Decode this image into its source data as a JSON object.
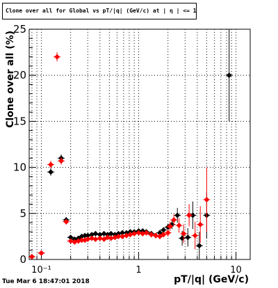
{
  "chart_data": {
    "type": "scatter",
    "title": "Clone  over all for Global vs pT/|q| (GeV/c) at | η | <= 1.0",
    "xlabel": "pT/|q| (GeV/c)",
    "ylabel": "Clone  over all (%)",
    "x_scale": "log",
    "xlim": [
      0.075,
      14
    ],
    "ylim": [
      0,
      25
    ],
    "x_major_ticks": [
      0.1,
      1,
      10
    ],
    "x_tick_labels": [
      "10⁻¹",
      "1",
      "10"
    ],
    "y_ticks": [
      0,
      5,
      10,
      15,
      20,
      25
    ],
    "y_tick_labels": [
      "0",
      "5",
      "10",
      "15",
      "20",
      "25"
    ],
    "grid": true,
    "series": [
      {
        "color": "#000000",
        "points": [
          {
            "x": 0.08,
            "y": 0.3,
            "err": 0.1
          },
          {
            "x": 0.1,
            "y": 0.7,
            "err": 0.2
          },
          {
            "x": 0.125,
            "y": 9.5,
            "err": 0.4
          },
          {
            "x": 0.16,
            "y": 11.0,
            "err": 0.4
          },
          {
            "x": 0.18,
            "y": 4.3,
            "err": 0.3
          },
          {
            "x": 0.2,
            "y": 2.4,
            "err": 0.2
          },
          {
            "x": 0.22,
            "y": 2.2,
            "err": 0.2
          },
          {
            "x": 0.24,
            "y": 2.3,
            "err": 0.2
          },
          {
            "x": 0.26,
            "y": 2.5,
            "err": 0.2
          },
          {
            "x": 0.28,
            "y": 2.6,
            "err": 0.2
          },
          {
            "x": 0.3,
            "y": 2.6,
            "err": 0.2
          },
          {
            "x": 0.33,
            "y": 2.7,
            "err": 0.2
          },
          {
            "x": 0.36,
            "y": 2.8,
            "err": 0.2
          },
          {
            "x": 0.4,
            "y": 2.7,
            "err": 0.2
          },
          {
            "x": 0.44,
            "y": 2.8,
            "err": 0.2
          },
          {
            "x": 0.48,
            "y": 2.7,
            "err": 0.2
          },
          {
            "x": 0.52,
            "y": 2.8,
            "err": 0.2
          },
          {
            "x": 0.57,
            "y": 2.7,
            "err": 0.2
          },
          {
            "x": 0.62,
            "y": 2.8,
            "err": 0.2
          },
          {
            "x": 0.68,
            "y": 2.9,
            "err": 0.2
          },
          {
            "x": 0.75,
            "y": 2.9,
            "err": 0.2
          },
          {
            "x": 0.82,
            "y": 3.0,
            "err": 0.2
          },
          {
            "x": 0.9,
            "y": 3.0,
            "err": 0.2
          },
          {
            "x": 1.0,
            "y": 3.1,
            "err": 0.2
          },
          {
            "x": 1.1,
            "y": 3.1,
            "err": 0.2
          },
          {
            "x": 1.2,
            "y": 3.0,
            "err": 0.2
          },
          {
            "x": 1.35,
            "y": 2.8,
            "err": 0.3
          },
          {
            "x": 1.5,
            "y": 2.6,
            "err": 0.3
          },
          {
            "x": 1.65,
            "y": 2.9,
            "err": 0.3
          },
          {
            "x": 1.8,
            "y": 3.2,
            "err": 0.3
          },
          {
            "x": 2.0,
            "y": 3.5,
            "err": 0.4
          },
          {
            "x": 2.2,
            "y": 3.8,
            "err": 0.5
          },
          {
            "x": 2.5,
            "y": 4.8,
            "err": 0.8
          },
          {
            "x": 2.8,
            "y": 2.3,
            "err": 0.8
          },
          {
            "x": 3.2,
            "y": 2.4,
            "err": 1.0
          },
          {
            "x": 3.6,
            "y": 4.8,
            "err": 1.5
          },
          {
            "x": 4.2,
            "y": 1.5,
            "err": 1.5
          },
          {
            "x": 5.0,
            "y": 4.8,
            "err": 2.5
          },
          {
            "x": 8.5,
            "y": 20.0,
            "err": 5.0
          }
        ]
      },
      {
        "color": "#ff0000",
        "points": [
          {
            "x": 0.08,
            "y": 0.3,
            "err": 0.1
          },
          {
            "x": 0.1,
            "y": 0.7,
            "err": 0.2
          },
          {
            "x": 0.125,
            "y": 10.3,
            "err": 0.4
          },
          {
            "x": 0.145,
            "y": 22.0,
            "err": 0.5
          },
          {
            "x": 0.16,
            "y": 10.7,
            "err": 0.4
          },
          {
            "x": 0.18,
            "y": 4.1,
            "err": 0.3
          },
          {
            "x": 0.2,
            "y": 2.0,
            "err": 0.2
          },
          {
            "x": 0.22,
            "y": 1.9,
            "err": 0.2
          },
          {
            "x": 0.24,
            "y": 2.0,
            "err": 0.2
          },
          {
            "x": 0.26,
            "y": 2.1,
            "err": 0.2
          },
          {
            "x": 0.28,
            "y": 2.1,
            "err": 0.2
          },
          {
            "x": 0.3,
            "y": 2.2,
            "err": 0.2
          },
          {
            "x": 0.33,
            "y": 2.3,
            "err": 0.2
          },
          {
            "x": 0.36,
            "y": 2.2,
            "err": 0.2
          },
          {
            "x": 0.4,
            "y": 2.3,
            "err": 0.2
          },
          {
            "x": 0.44,
            "y": 2.2,
            "err": 0.2
          },
          {
            "x": 0.48,
            "y": 2.4,
            "err": 0.2
          },
          {
            "x": 0.52,
            "y": 2.3,
            "err": 0.2
          },
          {
            "x": 0.57,
            "y": 2.4,
            "err": 0.2
          },
          {
            "x": 0.62,
            "y": 2.5,
            "err": 0.2
          },
          {
            "x": 0.68,
            "y": 2.5,
            "err": 0.2
          },
          {
            "x": 0.75,
            "y": 2.6,
            "err": 0.2
          },
          {
            "x": 0.82,
            "y": 2.7,
            "err": 0.2
          },
          {
            "x": 0.9,
            "y": 2.8,
            "err": 0.2
          },
          {
            "x": 1.0,
            "y": 2.9,
            "err": 0.2
          },
          {
            "x": 1.1,
            "y": 2.8,
            "err": 0.2
          },
          {
            "x": 1.2,
            "y": 2.9,
            "err": 0.2
          },
          {
            "x": 1.35,
            "y": 2.7,
            "err": 0.3
          },
          {
            "x": 1.5,
            "y": 2.6,
            "err": 0.3
          },
          {
            "x": 1.65,
            "y": 2.5,
            "err": 0.3
          },
          {
            "x": 1.8,
            "y": 2.7,
            "err": 0.3
          },
          {
            "x": 2.0,
            "y": 2.9,
            "err": 0.4
          },
          {
            "x": 2.1,
            "y": 3.6,
            "err": 0.5
          },
          {
            "x": 2.3,
            "y": 4.3,
            "err": 0.6
          },
          {
            "x": 2.6,
            "y": 3.7,
            "err": 0.8
          },
          {
            "x": 2.9,
            "y": 2.8,
            "err": 1.0
          },
          {
            "x": 3.3,
            "y": 4.8,
            "err": 1.2
          },
          {
            "x": 3.8,
            "y": 2.6,
            "err": 1.5
          },
          {
            "x": 4.3,
            "y": 3.8,
            "err": 2.0
          },
          {
            "x": 5.0,
            "y": 6.5,
            "err": 3.5
          }
        ]
      }
    ]
  },
  "timestamp": "Tue Mar  6 18:47:01 2018"
}
